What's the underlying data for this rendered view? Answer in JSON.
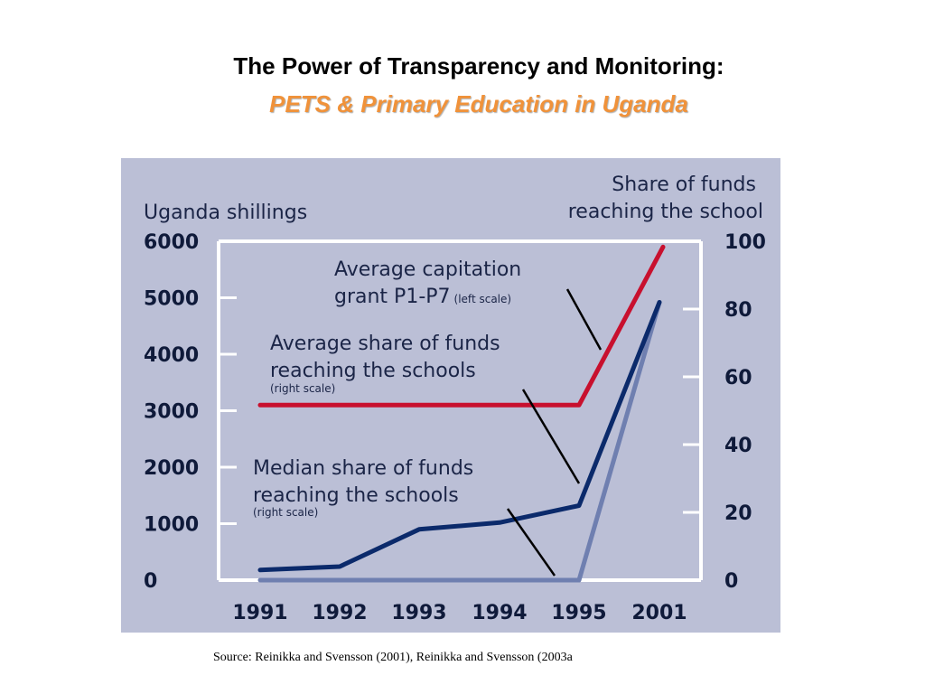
{
  "slide": {
    "title": "The Power of Transparency and Monitoring:",
    "subtitle": "PETS & Primary Education in Uganda",
    "source": "Source: Reinikka and Svensson (2001), Reinikka and Svensson (2003a"
  },
  "colors": {
    "panel_bg": "#bbbfd6",
    "capitation": "#c8102e",
    "average_share": "#0b2a6b",
    "median_share": "#6f7fb0",
    "frame": "#ffffff",
    "title_accent": "#f0923a"
  },
  "chart_data": {
    "type": "line",
    "categories": [
      "1991",
      "1992",
      "1993",
      "1994",
      "1995",
      "2001"
    ],
    "left_axis": {
      "label": "Uganda shillings",
      "ylim": [
        0,
        6000
      ],
      "ticks": [
        "6000",
        "5000",
        "4000",
        "3000",
        "2000",
        "1000",
        "0"
      ]
    },
    "right_axis": {
      "label_line1": "Share of funds",
      "label_line2": "reaching the school",
      "ylim": [
        0,
        100
      ],
      "ticks": [
        "100",
        "80",
        "60",
        "40",
        "20",
        "0"
      ]
    },
    "series": [
      {
        "name": "Average capitation grant P1-P7",
        "name_line1": "Average capitation",
        "name_line2": "grant P1-P7",
        "scale_note": "(left scale)",
        "axis": "left",
        "values": [
          3100,
          3100,
          3100,
          3100,
          3100,
          5900
        ]
      },
      {
        "name": "Average share of funds reaching the schools",
        "name_line1": "Average share of funds",
        "name_line2": "reaching the schools",
        "scale_note": "(right scale)",
        "axis": "right",
        "values": [
          3,
          4,
          15,
          17,
          22,
          82
        ]
      },
      {
        "name": "Median share of funds reaching the schools",
        "name_line1": "Median share of funds",
        "name_line2": "reaching the schools",
        "scale_note": "(right scale)",
        "axis": "right",
        "values": [
          0,
          0,
          0,
          0,
          0,
          82
        ]
      }
    ],
    "grid": false,
    "legend": "inline-annotations"
  }
}
